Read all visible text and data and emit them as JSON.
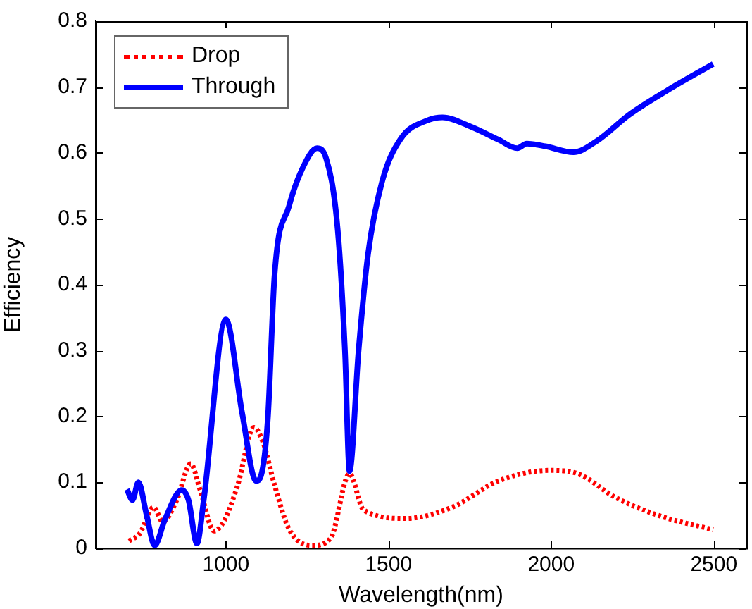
{
  "chart_data": {
    "type": "line",
    "xlabel": "Wavelength(nm)",
    "ylabel": "Efficiency",
    "xlim": [
      600,
      2600
    ],
    "xticks": [
      1000,
      1500,
      2000,
      2500
    ],
    "ylim": [
      0,
      0.8
    ],
    "yticks": [
      0,
      0.1,
      0.2,
      0.3,
      0.4,
      0.5,
      0.6,
      0.7,
      0.8
    ],
    "grid": false,
    "legend": "top left",
    "marker": "none",
    "series": [
      {
        "name": "Drop",
        "color": "#ff0000",
        "line_style": "dotted",
        "x": [
          702,
          735,
          778,
          806,
          849,
          892,
          921,
          964,
          993,
          1036,
          1086,
          1114,
          1150,
          1194,
          1265,
          1322,
          1380,
          1423,
          1552,
          1695,
          1838,
          1996,
          2082,
          2197,
          2340,
          2498
        ],
        "values": [
          0.011,
          0.022,
          0.062,
          0.04,
          0.073,
          0.128,
          0.088,
          0.026,
          0.04,
          0.095,
          0.183,
          0.161,
          0.095,
          0.029,
          0.004,
          0.015,
          0.113,
          0.058,
          0.045,
          0.062,
          0.102,
          0.118,
          0.113,
          0.077,
          0.048,
          0.028
        ]
      },
      {
        "name": "Through",
        "color": "#0000ff",
        "line_style": "solid",
        "x": [
          696,
          713,
          731,
          756,
          781,
          813,
          864,
          885,
          911,
          932,
          1000,
          1050,
          1093,
          1108,
          1129,
          1150,
          1194,
          1236,
          1280,
          1308,
          1344,
          1366,
          1380,
          1408,
          1437,
          1480,
          1537,
          1623,
          1666,
          1752,
          1838,
          1896,
          1925,
          1982,
          2068,
          2140,
          2240,
          2354,
          2498
        ],
        "values": [
          0.089,
          0.073,
          0.1,
          0.051,
          0.004,
          0.044,
          0.088,
          0.073,
          0.007,
          0.073,
          0.347,
          0.205,
          0.102,
          0.11,
          0.197,
          0.417,
          0.519,
          0.577,
          0.607,
          0.592,
          0.482,
          0.3,
          0.117,
          0.3,
          0.446,
          0.556,
          0.621,
          0.65,
          0.654,
          0.64,
          0.62,
          0.607,
          0.614,
          0.61,
          0.601,
          0.618,
          0.658,
          0.694,
          0.735
        ]
      }
    ]
  }
}
